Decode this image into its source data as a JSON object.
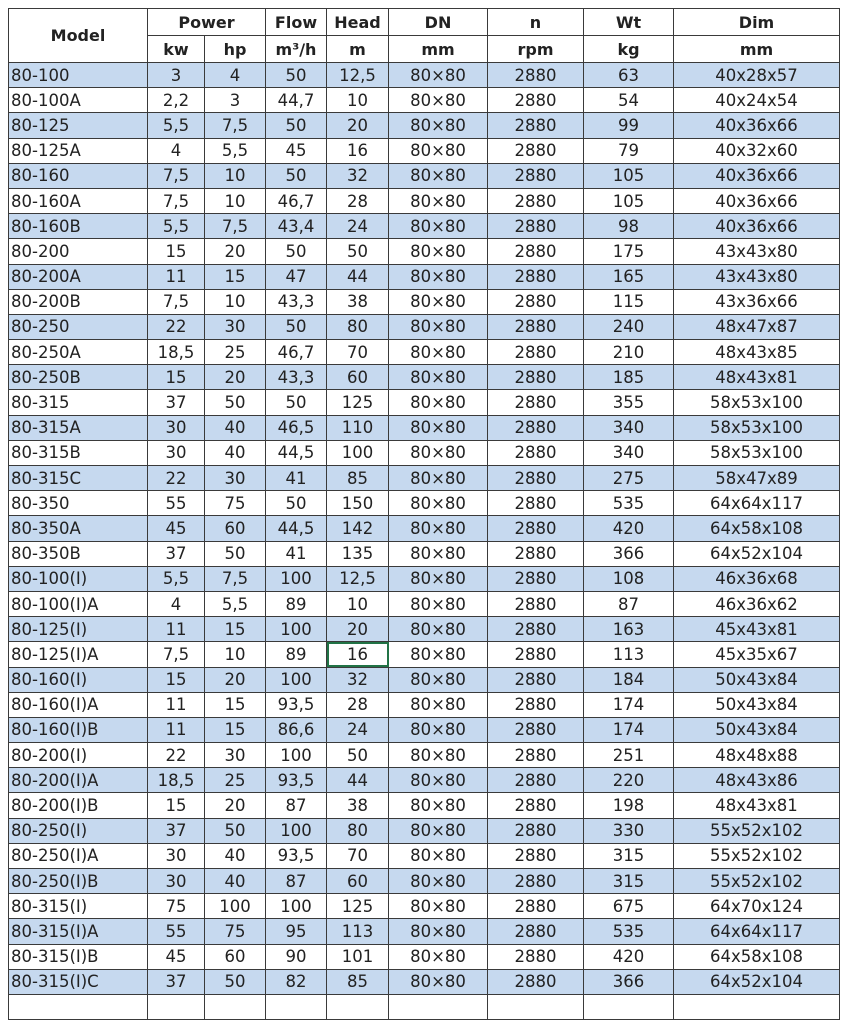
{
  "colors": {
    "stripe": "#c6d9ef",
    "selection": "#217346"
  },
  "header": {
    "top": [
      "Model",
      "Power",
      "Flow",
      "Head",
      "DN",
      "n",
      "Wt",
      "Dim"
    ],
    "units": [
      "kw",
      "hp",
      "m³/h",
      "m",
      "mm",
      "rpm",
      "kg",
      "mm"
    ]
  },
  "selected_cell": {
    "row": "80-125(I)A",
    "column": "Head"
  },
  "rows": [
    [
      "80-100",
      "3",
      "4",
      "50",
      "12,5",
      "80×80",
      "2880",
      "63",
      "40x28x57"
    ],
    [
      "80-100A",
      "2,2",
      "3",
      "44,7",
      "10",
      "80×80",
      "2880",
      "54",
      "40x24x54"
    ],
    [
      "80-125",
      "5,5",
      "7,5",
      "50",
      "20",
      "80×80",
      "2880",
      "99",
      "40x36x66"
    ],
    [
      "80-125A",
      "4",
      "5,5",
      "45",
      "16",
      "80×80",
      "2880",
      "79",
      "40x32x60"
    ],
    [
      "80-160",
      "7,5",
      "10",
      "50",
      "32",
      "80×80",
      "2880",
      "105",
      "40x36x66"
    ],
    [
      "80-160A",
      "7,5",
      "10",
      "46,7",
      "28",
      "80×80",
      "2880",
      "105",
      "40x36x66"
    ],
    [
      "80-160B",
      "5,5",
      "7,5",
      "43,4",
      "24",
      "80×80",
      "2880",
      "98",
      "40x36x66"
    ],
    [
      "80-200",
      "15",
      "20",
      "50",
      "50",
      "80×80",
      "2880",
      "175",
      "43x43x80"
    ],
    [
      "80-200A",
      "11",
      "15",
      "47",
      "44",
      "80×80",
      "2880",
      "165",
      "43x43x80"
    ],
    [
      "80-200B",
      "7,5",
      "10",
      "43,3",
      "38",
      "80×80",
      "2880",
      "115",
      "43x36x66"
    ],
    [
      "80-250",
      "22",
      "30",
      "50",
      "80",
      "80×80",
      "2880",
      "240",
      "48x47x87"
    ],
    [
      "80-250A",
      "18,5",
      "25",
      "46,7",
      "70",
      "80×80",
      "2880",
      "210",
      "48x43x85"
    ],
    [
      "80-250B",
      "15",
      "20",
      "43,3",
      "60",
      "80×80",
      "2880",
      "185",
      "48x43x81"
    ],
    [
      "80-315",
      "37",
      "50",
      "50",
      "125",
      "80×80",
      "2880",
      "355",
      "58x53x100"
    ],
    [
      "80-315A",
      "30",
      "40",
      "46,5",
      "110",
      "80×80",
      "2880",
      "340",
      "58x53x100"
    ],
    [
      "80-315B",
      "30",
      "40",
      "44,5",
      "100",
      "80×80",
      "2880",
      "340",
      "58x53x100"
    ],
    [
      "80-315C",
      "22",
      "30",
      "41",
      "85",
      "80×80",
      "2880",
      "275",
      "58x47x89"
    ],
    [
      "80-350",
      "55",
      "75",
      "50",
      "150",
      "80×80",
      "2880",
      "535",
      "64x64x117"
    ],
    [
      "80-350A",
      "45",
      "60",
      "44,5",
      "142",
      "80×80",
      "2880",
      "420",
      "64x58x108"
    ],
    [
      "80-350B",
      "37",
      "50",
      "41",
      "135",
      "80×80",
      "2880",
      "366",
      "64x52x104"
    ],
    [
      "80-100(I)",
      "5,5",
      "7,5",
      "100",
      "12,5",
      "80×80",
      "2880",
      "108",
      "46x36x68"
    ],
    [
      "80-100(I)A",
      "4",
      "5,5",
      "89",
      "10",
      "80×80",
      "2880",
      "87",
      "46x36x62"
    ],
    [
      "80-125(I)",
      "11",
      "15",
      "100",
      "20",
      "80×80",
      "2880",
      "163",
      "45x43x81"
    ],
    [
      "80-125(I)A",
      "7,5",
      "10",
      "89",
      "16",
      "80×80",
      "2880",
      "113",
      "45x35x67"
    ],
    [
      "80-160(I)",
      "15",
      "20",
      "100",
      "32",
      "80×80",
      "2880",
      "184",
      "50x43x84"
    ],
    [
      "80-160(I)A",
      "11",
      "15",
      "93,5",
      "28",
      "80×80",
      "2880",
      "174",
      "50x43x84"
    ],
    [
      "80-160(I)B",
      "11",
      "15",
      "86,6",
      "24",
      "80×80",
      "2880",
      "174",
      "50x43x84"
    ],
    [
      "80-200(I)",
      "22",
      "30",
      "100",
      "50",
      "80×80",
      "2880",
      "251",
      "48x48x88"
    ],
    [
      "80-200(I)A",
      "18,5",
      "25",
      "93,5",
      "44",
      "80×80",
      "2880",
      "220",
      "48x43x86"
    ],
    [
      "80-200(I)B",
      "15",
      "20",
      "87",
      "38",
      "80×80",
      "2880",
      "198",
      "48x43x81"
    ],
    [
      "80-250(I)",
      "37",
      "50",
      "100",
      "80",
      "80×80",
      "2880",
      "330",
      "55x52x102"
    ],
    [
      "80-250(I)A",
      "30",
      "40",
      "93,5",
      "70",
      "80×80",
      "2880",
      "315",
      "55x52x102"
    ],
    [
      "80-250(I)B",
      "30",
      "40",
      "87",
      "60",
      "80×80",
      "2880",
      "315",
      "55x52x102"
    ],
    [
      "80-315(I)",
      "75",
      "100",
      "100",
      "125",
      "80×80",
      "2880",
      "675",
      "64x70x124"
    ],
    [
      "80-315(I)A",
      "55",
      "75",
      "95",
      "113",
      "80×80",
      "2880",
      "535",
      "64x64x117"
    ],
    [
      "80-315(I)B",
      "45",
      "60",
      "90",
      "101",
      "80×80",
      "2880",
      "420",
      "64x58x108"
    ],
    [
      "80-315(I)C",
      "37",
      "50",
      "82",
      "85",
      "80×80",
      "2880",
      "366",
      "64x52x104"
    ]
  ]
}
